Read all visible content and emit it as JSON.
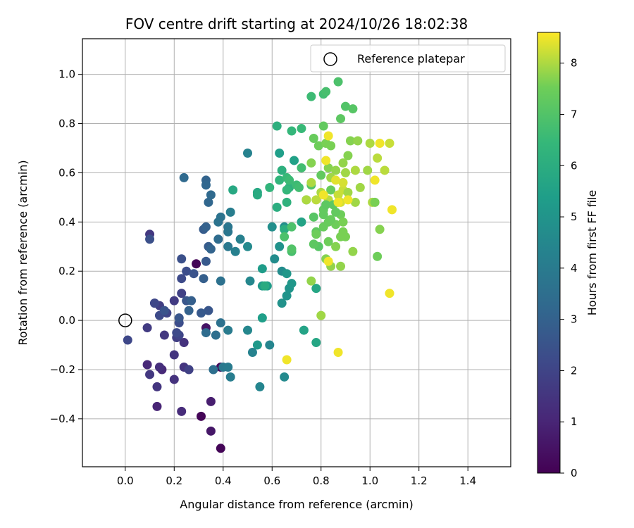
{
  "chart_data": {
    "type": "scatter",
    "title": "FOV centre drift starting at 2024/10/26 18:02:38",
    "xlabel": "Angular distance from reference (arcmin)",
    "ylabel": "Rotation from reference (arcmin)",
    "xlim": [
      -0.175,
      1.575
    ],
    "ylim": [
      -0.595,
      1.145
    ],
    "xticks": [
      0.0,
      0.2,
      0.4,
      0.6,
      0.8,
      1.0,
      1.2,
      1.4
    ],
    "xtick_labels": [
      "0.0",
      "0.2",
      "0.4",
      "0.6",
      "0.8",
      "1.0",
      "1.2",
      "1.4"
    ],
    "yticks": [
      -0.4,
      -0.2,
      0.0,
      0.2,
      0.4,
      0.6,
      0.8,
      1.0
    ],
    "ytick_labels": [
      "−0.4",
      "−0.2",
      "0.0",
      "0.2",
      "0.4",
      "0.6",
      "0.8",
      "1.0"
    ],
    "grid": true,
    "legend": {
      "position": "top-right",
      "label": "Reference platepar"
    },
    "reference_point": {
      "x": 0.0,
      "y": 0.0
    },
    "colormap": "viridis",
    "colorbar": {
      "label": "Hours from first FF file",
      "min": 0,
      "max": 8.6,
      "ticks": [
        0,
        1,
        2,
        3,
        4,
        5,
        6,
        7,
        8
      ]
    },
    "points": [
      {
        "x": 0.29,
        "y": 0.23,
        "c": 0.1
      },
      {
        "x": 0.31,
        "y": -0.39,
        "c": 0.1
      },
      {
        "x": 0.39,
        "y": -0.52,
        "c": 0.1
      },
      {
        "x": 0.39,
        "y": -0.19,
        "c": 0.2
      },
      {
        "x": 0.33,
        "y": -0.03,
        "c": 0.5
      },
      {
        "x": 0.35,
        "y": -0.45,
        "c": 0.6
      },
      {
        "x": 0.35,
        "y": -0.33,
        "c": 0.8
      },
      {
        "x": 0.13,
        "y": -0.35,
        "c": 1.0
      },
      {
        "x": 0.15,
        "y": -0.2,
        "c": 1.1
      },
      {
        "x": 0.09,
        "y": -0.18,
        "c": 1.1
      },
      {
        "x": 0.23,
        "y": -0.37,
        "c": 1.2
      },
      {
        "x": 0.14,
        "y": -0.19,
        "c": 1.3
      },
      {
        "x": 0.2,
        "y": -0.24,
        "c": 1.4
      },
      {
        "x": 0.24,
        "y": -0.09,
        "c": 1.4
      },
      {
        "x": 0.2,
        "y": -0.14,
        "c": 1.5
      },
      {
        "x": 0.24,
        "y": -0.19,
        "c": 1.5
      },
      {
        "x": 0.13,
        "y": -0.27,
        "c": 1.5
      },
      {
        "x": 0.1,
        "y": -0.22,
        "c": 1.6
      },
      {
        "x": 0.1,
        "y": 0.35,
        "c": 1.6
      },
      {
        "x": 0.16,
        "y": -0.06,
        "c": 1.6
      },
      {
        "x": 0.12,
        "y": 0.07,
        "c": 1.7
      },
      {
        "x": 0.09,
        "y": -0.03,
        "c": 1.7
      },
      {
        "x": 0.2,
        "y": 0.08,
        "c": 1.7
      },
      {
        "x": 0.14,
        "y": 0.06,
        "c": 1.8
      },
      {
        "x": 0.21,
        "y": -0.07,
        "c": 1.8
      },
      {
        "x": 0.23,
        "y": 0.11,
        "c": 1.9
      },
      {
        "x": 0.26,
        "y": -0.2,
        "c": 1.9
      },
      {
        "x": 0.22,
        "y": -0.06,
        "c": 2.0
      },
      {
        "x": 0.17,
        "y": 0.03,
        "c": 2.0
      },
      {
        "x": 0.01,
        "y": -0.08,
        "c": 2.1
      },
      {
        "x": 0.12,
        "y": 0.07,
        "c": 2.1
      },
      {
        "x": 0.14,
        "y": 0.02,
        "c": 2.2
      },
      {
        "x": 0.21,
        "y": -0.05,
        "c": 2.2
      },
      {
        "x": 0.23,
        "y": 0.17,
        "c": 2.2
      },
      {
        "x": 0.25,
        "y": 0.2,
        "c": 2.3
      },
      {
        "x": 0.22,
        "y": -0.01,
        "c": 2.3
      },
      {
        "x": 0.1,
        "y": 0.33,
        "c": 2.4
      },
      {
        "x": 0.23,
        "y": 0.25,
        "c": 2.4
      },
      {
        "x": 0.28,
        "y": 0.19,
        "c": 2.5
      },
      {
        "x": 0.16,
        "y": 0.04,
        "c": 2.5
      },
      {
        "x": 0.22,
        "y": 0.01,
        "c": 2.6
      },
      {
        "x": 0.34,
        "y": 0.04,
        "c": 2.6
      },
      {
        "x": 0.25,
        "y": 0.08,
        "c": 2.6
      },
      {
        "x": 0.31,
        "y": 0.03,
        "c": 2.7
      },
      {
        "x": 0.33,
        "y": 0.24,
        "c": 2.7
      },
      {
        "x": 0.32,
        "y": 0.37,
        "c": 2.8
      },
      {
        "x": 0.34,
        "y": 0.3,
        "c": 2.8
      },
      {
        "x": 0.27,
        "y": 0.08,
        "c": 2.9
      },
      {
        "x": 0.32,
        "y": 0.17,
        "c": 2.9
      },
      {
        "x": 0.26,
        "y": 0.04,
        "c": 3.0
      },
      {
        "x": 0.33,
        "y": 0.38,
        "c": 3.0
      },
      {
        "x": 0.35,
        "y": 0.29,
        "c": 3.1
      },
      {
        "x": 0.33,
        "y": 0.57,
        "c": 3.1
      },
      {
        "x": 0.33,
        "y": 0.55,
        "c": 3.2
      },
      {
        "x": 0.34,
        "y": 0.48,
        "c": 3.2
      },
      {
        "x": 0.24,
        "y": 0.58,
        "c": 3.3
      },
      {
        "x": 0.35,
        "y": 0.51,
        "c": 3.3
      },
      {
        "x": 0.38,
        "y": 0.33,
        "c": 3.4
      },
      {
        "x": 0.33,
        "y": -0.05,
        "c": 3.4
      },
      {
        "x": 0.37,
        "y": -0.06,
        "c": 3.5
      },
      {
        "x": 0.36,
        "y": -0.2,
        "c": 3.5
      },
      {
        "x": 0.39,
        "y": 0.16,
        "c": 3.6
      },
      {
        "x": 0.39,
        "y": -0.01,
        "c": 3.6
      },
      {
        "x": 0.38,
        "y": 0.4,
        "c": 3.7
      },
      {
        "x": 0.39,
        "y": 0.42,
        "c": 3.7
      },
      {
        "x": 0.42,
        "y": 0.38,
        "c": 3.8
      },
      {
        "x": 0.42,
        "y": 0.36,
        "c": 3.8
      },
      {
        "x": 0.42,
        "y": 0.3,
        "c": 3.9
      },
      {
        "x": 0.4,
        "y": -0.19,
        "c": 3.9
      },
      {
        "x": 0.42,
        "y": -0.19,
        "c": 4.0
      },
      {
        "x": 0.42,
        "y": -0.04,
        "c": 4.0
      },
      {
        "x": 0.43,
        "y": -0.23,
        "c": 4.1
      },
      {
        "x": 0.43,
        "y": 0.44,
        "c": 4.1
      },
      {
        "x": 0.45,
        "y": 0.28,
        "c": 4.2
      },
      {
        "x": 0.47,
        "y": 0.33,
        "c": 4.2
      },
      {
        "x": 0.5,
        "y": 0.68,
        "c": 4.3
      },
      {
        "x": 0.52,
        "y": -0.13,
        "c": 4.3
      },
      {
        "x": 0.55,
        "y": -0.27,
        "c": 4.4
      },
      {
        "x": 0.59,
        "y": -0.1,
        "c": 4.4
      },
      {
        "x": 0.5,
        "y": -0.04,
        "c": 4.5
      },
      {
        "x": 0.51,
        "y": 0.16,
        "c": 4.5
      },
      {
        "x": 0.5,
        "y": 0.3,
        "c": 4.6
      },
      {
        "x": 0.65,
        "y": -0.23,
        "c": 4.6
      },
      {
        "x": 0.64,
        "y": 0.2,
        "c": 4.7
      },
      {
        "x": 0.61,
        "y": 0.25,
        "c": 4.7
      },
      {
        "x": 0.6,
        "y": 0.38,
        "c": 4.8
      },
      {
        "x": 0.65,
        "y": 0.38,
        "c": 4.8
      },
      {
        "x": 0.63,
        "y": 0.3,
        "c": 4.9
      },
      {
        "x": 0.64,
        "y": 0.07,
        "c": 4.9
      },
      {
        "x": 0.67,
        "y": 0.13,
        "c": 5.0
      },
      {
        "x": 0.66,
        "y": 0.1,
        "c": 5.0
      },
      {
        "x": 0.68,
        "y": 0.15,
        "c": 5.1
      },
      {
        "x": 0.66,
        "y": 0.19,
        "c": 5.1
      },
      {
        "x": 0.54,
        "y": -0.1,
        "c": 5.2
      },
      {
        "x": 0.56,
        "y": 0.14,
        "c": 5.2
      },
      {
        "x": 0.56,
        "y": 0.21,
        "c": 5.3
      },
      {
        "x": 0.58,
        "y": 0.14,
        "c": 5.3
      },
      {
        "x": 0.56,
        "y": 0.01,
        "c": 5.4
      },
      {
        "x": 0.63,
        "y": 0.68,
        "c": 5.4
      },
      {
        "x": 0.67,
        "y": 0.57,
        "c": 5.5
      },
      {
        "x": 0.69,
        "y": 0.65,
        "c": 5.5
      },
      {
        "x": 0.72,
        "y": 0.4,
        "c": 5.6
      },
      {
        "x": 0.73,
        "y": -0.04,
        "c": 5.6
      },
      {
        "x": 0.78,
        "y": -0.09,
        "c": 5.7
      },
      {
        "x": 0.78,
        "y": 0.13,
        "c": 5.7
      },
      {
        "x": 0.44,
        "y": 0.53,
        "c": 5.8
      },
      {
        "x": 0.54,
        "y": 0.52,
        "c": 5.8
      },
      {
        "x": 0.54,
        "y": 0.51,
        "c": 5.9
      },
      {
        "x": 0.57,
        "y": 0.14,
        "c": 5.9
      },
      {
        "x": 0.62,
        "y": 0.46,
        "c": 6.0
      },
      {
        "x": 0.65,
        "y": 0.37,
        "c": 6.0
      },
      {
        "x": 0.62,
        "y": 0.79,
        "c": 6.1
      },
      {
        "x": 0.64,
        "y": 0.61,
        "c": 6.1
      },
      {
        "x": 0.66,
        "y": 0.48,
        "c": 6.2
      },
      {
        "x": 0.67,
        "y": 0.54,
        "c": 6.2
      },
      {
        "x": 0.59,
        "y": 0.54,
        "c": 6.3
      },
      {
        "x": 0.63,
        "y": 0.57,
        "c": 6.3
      },
      {
        "x": 0.66,
        "y": 0.53,
        "c": 6.4
      },
      {
        "x": 0.68,
        "y": 0.77,
        "c": 6.4
      },
      {
        "x": 0.72,
        "y": 0.78,
        "c": 6.5
      },
      {
        "x": 0.66,
        "y": 0.58,
        "c": 6.5
      },
      {
        "x": 0.67,
        "y": 0.57,
        "c": 6.6
      },
      {
        "x": 0.7,
        "y": 0.55,
        "c": 6.6
      },
      {
        "x": 0.71,
        "y": 0.54,
        "c": 6.7
      },
      {
        "x": 0.72,
        "y": 0.62,
        "c": 6.7
      },
      {
        "x": 0.74,
        "y": 0.49,
        "c": 6.8
      },
      {
        "x": 0.68,
        "y": 0.28,
        "c": 6.8
      },
      {
        "x": 0.68,
        "y": 0.38,
        "c": 6.9
      },
      {
        "x": 0.65,
        "y": 0.34,
        "c": 6.9
      },
      {
        "x": 0.68,
        "y": 0.29,
        "c": 7.0
      },
      {
        "x": 0.76,
        "y": 0.55,
        "c": 7.0
      },
      {
        "x": 0.77,
        "y": 0.42,
        "c": 7.1
      },
      {
        "x": 0.79,
        "y": 0.3,
        "c": 7.1
      },
      {
        "x": 0.77,
        "y": 0.31,
        "c": 7.2
      },
      {
        "x": 0.78,
        "y": 0.36,
        "c": 7.2
      },
      {
        "x": 0.8,
        "y": 0.59,
        "c": 7.3
      },
      {
        "x": 0.81,
        "y": 0.45,
        "c": 7.3
      },
      {
        "x": 0.83,
        "y": 0.4,
        "c": 7.4
      },
      {
        "x": 0.84,
        "y": 0.53,
        "c": 7.4
      },
      {
        "x": 0.86,
        "y": 0.39,
        "c": 7.5
      },
      {
        "x": 0.88,
        "y": 0.43,
        "c": 7.5
      },
      {
        "x": 0.89,
        "y": 0.4,
        "c": 7.6
      },
      {
        "x": 0.9,
        "y": 0.34,
        "c": 7.6
      },
      {
        "x": 0.91,
        "y": 0.67,
        "c": 7.7
      },
      {
        "x": 0.92,
        "y": 0.73,
        "c": 7.7
      },
      {
        "x": 0.93,
        "y": 0.28,
        "c": 7.8
      },
      {
        "x": 0.95,
        "y": 0.73,
        "c": 7.8
      },
      {
        "x": 0.96,
        "y": 0.54,
        "c": 7.9
      },
      {
        "x": 0.99,
        "y": 0.61,
        "c": 7.9
      },
      {
        "x": 1.0,
        "y": 0.72,
        "c": 8.0
      },
      {
        "x": 1.01,
        "y": 0.48,
        "c": 8.0
      },
      {
        "x": 1.03,
        "y": 0.66,
        "c": 8.1
      },
      {
        "x": 1.06,
        "y": 0.61,
        "c": 8.1
      },
      {
        "x": 1.08,
        "y": 0.72,
        "c": 8.2
      },
      {
        "x": 0.76,
        "y": 0.91,
        "c": 6.6
      },
      {
        "x": 0.81,
        "y": 0.92,
        "c": 6.7
      },
      {
        "x": 0.82,
        "y": 0.93,
        "c": 6.8
      },
      {
        "x": 0.87,
        "y": 0.97,
        "c": 6.9
      },
      {
        "x": 0.9,
        "y": 0.87,
        "c": 7.0
      },
      {
        "x": 0.93,
        "y": 0.86,
        "c": 7.1
      },
      {
        "x": 0.88,
        "y": 0.82,
        "c": 7.2
      },
      {
        "x": 0.81,
        "y": 0.79,
        "c": 7.3
      },
      {
        "x": 0.77,
        "y": 0.74,
        "c": 7.4
      },
      {
        "x": 0.79,
        "y": 0.71,
        "c": 7.5
      },
      {
        "x": 0.82,
        "y": 0.72,
        "c": 7.6
      },
      {
        "x": 0.84,
        "y": 0.71,
        "c": 7.6
      },
      {
        "x": 0.76,
        "y": 0.64,
        "c": 7.7
      },
      {
        "x": 0.83,
        "y": 0.62,
        "c": 7.7
      },
      {
        "x": 0.86,
        "y": 0.61,
        "c": 7.8
      },
      {
        "x": 0.89,
        "y": 0.64,
        "c": 7.8
      },
      {
        "x": 0.9,
        "y": 0.6,
        "c": 7.9
      },
      {
        "x": 0.84,
        "y": 0.58,
        "c": 7.9
      },
      {
        "x": 0.76,
        "y": 0.56,
        "c": 8.0
      },
      {
        "x": 0.8,
        "y": 0.52,
        "c": 8.0
      },
      {
        "x": 0.78,
        "y": 0.49,
        "c": 8.1
      },
      {
        "x": 0.83,
        "y": 0.49,
        "c": 8.1
      },
      {
        "x": 0.87,
        "y": 0.51,
        "c": 8.2
      },
      {
        "x": 0.89,
        "y": 0.53,
        "c": 8.2
      },
      {
        "x": 0.89,
        "y": 0.56,
        "c": 8.3
      },
      {
        "x": 0.88,
        "y": 0.48,
        "c": 8.3
      },
      {
        "x": 0.82,
        "y": 0.47,
        "c": 7.2
      },
      {
        "x": 0.85,
        "y": 0.47,
        "c": 7.2
      },
      {
        "x": 0.86,
        "y": 0.44,
        "c": 7.3
      },
      {
        "x": 0.81,
        "y": 0.43,
        "c": 7.3
      },
      {
        "x": 0.84,
        "y": 0.41,
        "c": 7.4
      },
      {
        "x": 0.81,
        "y": 0.38,
        "c": 7.4
      },
      {
        "x": 0.78,
        "y": 0.35,
        "c": 7.5
      },
      {
        "x": 0.83,
        "y": 0.32,
        "c": 7.5
      },
      {
        "x": 0.88,
        "y": 0.34,
        "c": 7.6
      },
      {
        "x": 0.89,
        "y": 0.36,
        "c": 7.6
      },
      {
        "x": 0.86,
        "y": 0.3,
        "c": 7.7
      },
      {
        "x": 0.82,
        "y": 0.25,
        "c": 7.7
      },
      {
        "x": 0.84,
        "y": 0.22,
        "c": 7.8
      },
      {
        "x": 0.88,
        "y": 0.22,
        "c": 7.8
      },
      {
        "x": 0.94,
        "y": 0.48,
        "c": 7.9
      },
      {
        "x": 0.91,
        "y": 0.52,
        "c": 7.9
      },
      {
        "x": 0.94,
        "y": 0.61,
        "c": 8.0
      },
      {
        "x": 1.02,
        "y": 0.48,
        "c": 7.6
      },
      {
        "x": 1.04,
        "y": 0.37,
        "c": 7.7
      },
      {
        "x": 1.03,
        "y": 0.26,
        "c": 7.5
      },
      {
        "x": 0.76,
        "y": 0.16,
        "c": 7.8
      },
      {
        "x": 0.8,
        "y": 0.02,
        "c": 7.9
      },
      {
        "x": 0.74,
        "y": 0.49,
        "c": 8.0
      },
      {
        "x": 0.86,
        "y": 0.57,
        "c": 8.4
      },
      {
        "x": 0.83,
        "y": 0.75,
        "c": 8.5
      },
      {
        "x": 0.82,
        "y": 0.65,
        "c": 8.5
      },
      {
        "x": 1.04,
        "y": 0.72,
        "c": 8.5
      },
      {
        "x": 1.02,
        "y": 0.57,
        "c": 8.5
      },
      {
        "x": 0.87,
        "y": 0.48,
        "c": 8.5
      },
      {
        "x": 0.91,
        "y": 0.49,
        "c": 8.5
      },
      {
        "x": 0.81,
        "y": 0.51,
        "c": 8.5
      },
      {
        "x": 0.83,
        "y": 0.24,
        "c": 8.5
      },
      {
        "x": 1.09,
        "y": 0.45,
        "c": 8.5
      },
      {
        "x": 1.08,
        "y": 0.11,
        "c": 8.5
      },
      {
        "x": 0.87,
        "y": -0.13,
        "c": 8.5
      },
      {
        "x": 0.66,
        "y": -0.16,
        "c": 8.5
      }
    ]
  }
}
